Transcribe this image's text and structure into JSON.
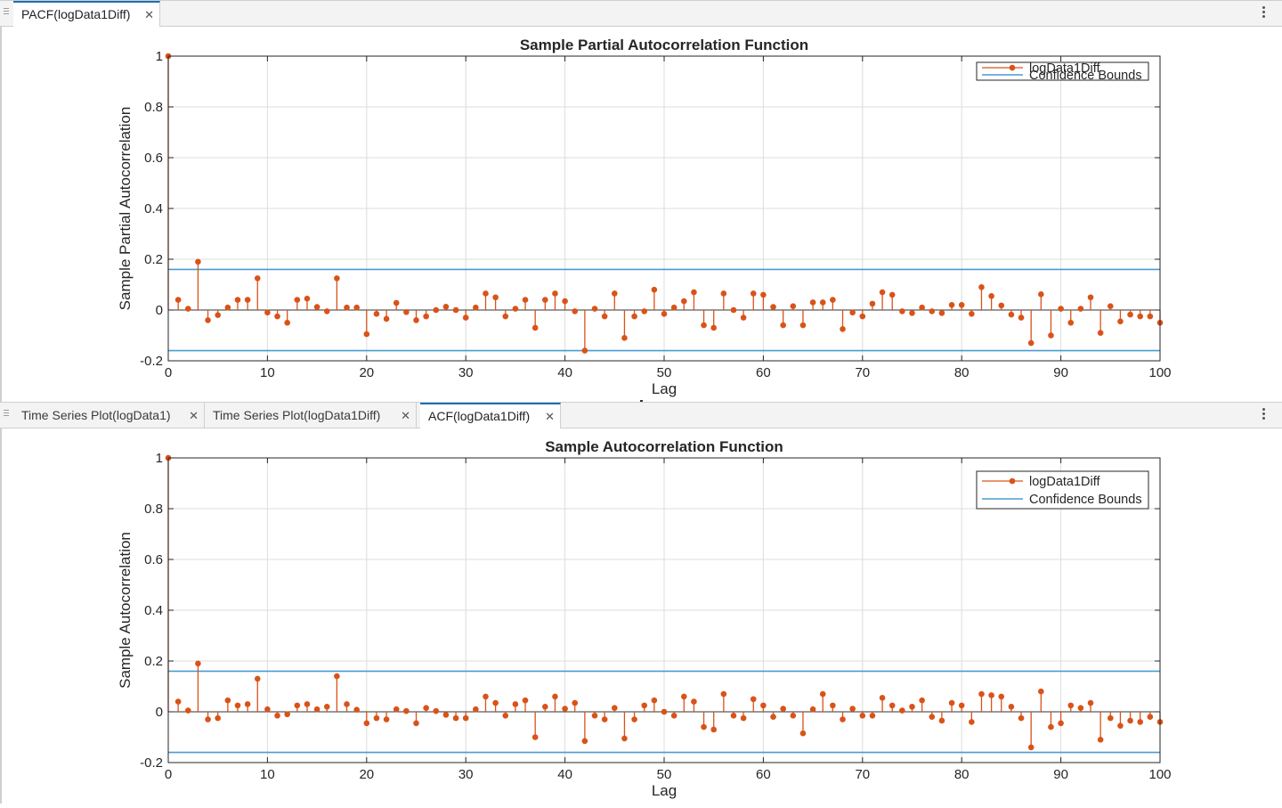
{
  "top_panel": {
    "tabs": [
      {
        "label": "PACF(logData1Diff)",
        "active": true
      }
    ]
  },
  "bottom_panel": {
    "tabs": [
      {
        "label": "Time Series Plot(logData1)",
        "active": false
      },
      {
        "label": "Time Series Plot(logData1Diff)",
        "active": false
      },
      {
        "label": "ACF(logData1Diff)",
        "active": true
      }
    ]
  },
  "colors": {
    "stem": "#D95319",
    "bounds": "#4A9BD1",
    "grid": "#dcdcdc",
    "active_tab_accent": "#1a6fb5"
  },
  "icons": {
    "tab_close": "close-icon",
    "panel_menu": "more-vertical-icon",
    "drag_handle": "grip-icon"
  },
  "chart_data": [
    {
      "type": "stem",
      "title": "Sample Partial Autocorrelation Function",
      "xlabel": "Lag",
      "ylabel": "Sample Partial Autocorrelation",
      "xlim": [
        0,
        100
      ],
      "ylim": [
        -0.2,
        1
      ],
      "xticks": [
        "0",
        "10",
        "20",
        "30",
        "40",
        "50",
        "60",
        "70",
        "80",
        "90",
        "100"
      ],
      "yticks": [
        "-0.2",
        "0",
        "0.2",
        "0.4",
        "0.6",
        "0.8",
        "1"
      ],
      "grid": true,
      "legend_position": "top-right",
      "legend": [
        "logData1Diff",
        "Confidence Bounds"
      ],
      "confidence_bounds": [
        0.16,
        -0.16
      ],
      "x": [
        0,
        1,
        2,
        3,
        4,
        5,
        6,
        7,
        8,
        9,
        10,
        11,
        12,
        13,
        14,
        15,
        16,
        17,
        18,
        19,
        20,
        21,
        22,
        23,
        24,
        25,
        26,
        27,
        28,
        29,
        30,
        31,
        32,
        33,
        34,
        35,
        36,
        37,
        38,
        39,
        40,
        41,
        42,
        43,
        44,
        45,
        46,
        47,
        48,
        49,
        50,
        51,
        52,
        53,
        54,
        55,
        56,
        57,
        58,
        59,
        60,
        61,
        62,
        63,
        64,
        65,
        66,
        67,
        68,
        69,
        70,
        71,
        72,
        73,
        74,
        75,
        76,
        77,
        78,
        79,
        80,
        81,
        82,
        83,
        84,
        85,
        86,
        87,
        88,
        89,
        90,
        91,
        92,
        93,
        94,
        95,
        96,
        97,
        98,
        99,
        100
      ],
      "values": [
        1.0,
        0.04,
        0.005,
        0.19,
        -0.04,
        -0.02,
        0.01,
        0.04,
        0.04,
        0.125,
        -0.01,
        -0.025,
        -0.05,
        0.04,
        0.045,
        0.012,
        -0.005,
        0.125,
        0.01,
        0.01,
        -0.095,
        -0.015,
        -0.035,
        0.028,
        -0.008,
        -0.04,
        -0.025,
        0.0,
        0.013,
        0.0,
        -0.03,
        0.01,
        0.065,
        0.05,
        -0.025,
        0.005,
        0.04,
        -0.07,
        0.04,
        0.065,
        0.035,
        -0.005,
        -0.16,
        0.005,
        -0.025,
        0.065,
        -0.11,
        -0.025,
        -0.005,
        0.08,
        -0.015,
        0.01,
        0.035,
        0.07,
        -0.06,
        -0.07,
        0.065,
        0.0,
        -0.03,
        0.065,
        0.06,
        0.012,
        -0.06,
        0.015,
        -0.06,
        0.03,
        0.03,
        0.04,
        -0.075,
        -0.01,
        -0.025,
        0.025,
        0.07,
        0.06,
        -0.005,
        -0.012,
        0.01,
        -0.005,
        -0.012,
        0.02,
        0.02,
        -0.015,
        0.09,
        0.055,
        0.018,
        -0.018,
        -0.03,
        -0.13,
        0.062,
        -0.1,
        0.005,
        -0.05,
        0.005,
        0.05,
        -0.09,
        0.015,
        -0.045,
        -0.018,
        -0.025,
        -0.025,
        -0.05
      ]
    },
    {
      "type": "stem",
      "title": "Sample Autocorrelation Function",
      "xlabel": "Lag",
      "ylabel": "Sample Autocorrelation",
      "xlim": [
        0,
        100
      ],
      "ylim": [
        -0.2,
        1
      ],
      "xticks": [
        "0",
        "10",
        "20",
        "30",
        "40",
        "50",
        "60",
        "70",
        "80",
        "90",
        "100"
      ],
      "yticks": [
        "-0.2",
        "0",
        "0.2",
        "0.4",
        "0.6",
        "0.8",
        "1"
      ],
      "grid": true,
      "legend_position": "top-right",
      "legend": [
        "logData1Diff",
        "Confidence Bounds"
      ],
      "confidence_bounds": [
        0.16,
        -0.16
      ],
      "x": [
        0,
        1,
        2,
        3,
        4,
        5,
        6,
        7,
        8,
        9,
        10,
        11,
        12,
        13,
        14,
        15,
        16,
        17,
        18,
        19,
        20,
        21,
        22,
        23,
        24,
        25,
        26,
        27,
        28,
        29,
        30,
        31,
        32,
        33,
        34,
        35,
        36,
        37,
        38,
        39,
        40,
        41,
        42,
        43,
        44,
        45,
        46,
        47,
        48,
        49,
        50,
        51,
        52,
        53,
        54,
        55,
        56,
        57,
        58,
        59,
        60,
        61,
        62,
        63,
        64,
        65,
        66,
        67,
        68,
        69,
        70,
        71,
        72,
        73,
        74,
        75,
        76,
        77,
        78,
        79,
        80,
        81,
        82,
        83,
        84,
        85,
        86,
        87,
        88,
        89,
        90,
        91,
        92,
        93,
        94,
        95,
        96,
        97,
        98,
        99,
        100
      ],
      "values": [
        1.0,
        0.04,
        0.005,
        0.19,
        -0.03,
        -0.025,
        0.045,
        0.025,
        0.03,
        0.13,
        0.01,
        -0.015,
        -0.01,
        0.025,
        0.03,
        0.01,
        0.02,
        0.14,
        0.03,
        0.008,
        -0.045,
        -0.025,
        -0.03,
        0.01,
        0.003,
        -0.045,
        0.015,
        0.003,
        -0.012,
        -0.025,
        -0.025,
        0.01,
        0.06,
        0.035,
        -0.015,
        0.03,
        0.045,
        -0.1,
        0.02,
        0.06,
        0.012,
        0.035,
        -0.115,
        -0.015,
        -0.03,
        0.015,
        -0.105,
        -0.03,
        0.025,
        0.045,
        0.0,
        -0.015,
        0.06,
        0.04,
        -0.06,
        -0.07,
        0.07,
        -0.015,
        -0.025,
        0.05,
        0.025,
        -0.02,
        0.012,
        -0.015,
        -0.085,
        0.01,
        0.07,
        0.025,
        -0.03,
        0.012,
        -0.015,
        -0.015,
        0.055,
        0.025,
        0.005,
        0.02,
        0.045,
        -0.02,
        -0.035,
        0.035,
        0.025,
        -0.04,
        0.07,
        0.065,
        0.06,
        0.02,
        -0.025,
        -0.14,
        0.08,
        -0.06,
        -0.045,
        0.025,
        0.015,
        0.035,
        -0.11,
        -0.025,
        -0.055,
        -0.035,
        -0.04,
        -0.02,
        -0.04
      ]
    }
  ]
}
